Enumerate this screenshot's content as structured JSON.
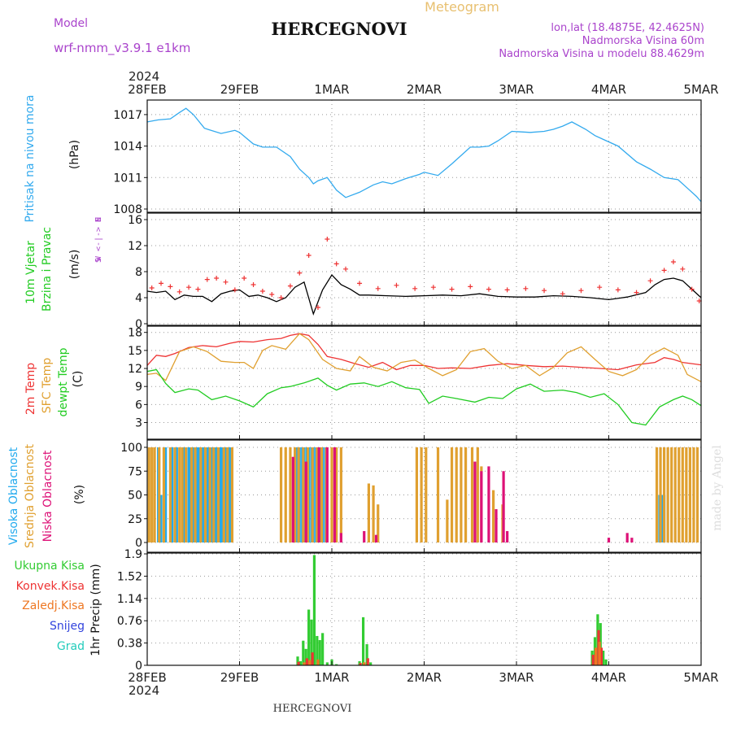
{
  "header": {
    "title": "HERCEGNOVI",
    "subtitle": "Meteogram",
    "model_label": "Model",
    "model_name": "wrf-nmm_v3.9.1  e1km",
    "coords": "lon,lat (18.4875E, 42.4625N)",
    "elevation": "Nadmorska Visina 60m",
    "model_elevation": "Nadmorska Visina u modelu 88.4629m",
    "footer_title": "HERCEGNOVI",
    "watermark": "made by Angel"
  },
  "time_axis": {
    "year": "2024",
    "labels": [
      "28FEB",
      "29FEB",
      "1MAR",
      "2MAR",
      "3MAR",
      "4MAR",
      "5MAR"
    ],
    "range_days": [
      0,
      6
    ]
  },
  "colors": {
    "pressure": "#33aaee",
    "wind_speed": "#000000",
    "wind_gust": "#ee3333",
    "temp_2m": "#ee3333",
    "temp_sfc": "#e0a030",
    "dewpoint": "#22cc22",
    "cloud_high": "#22aaee",
    "cloud_mid": "#e0a030",
    "cloud_low": "#dd1177",
    "precip_total": "#33cc33",
    "precip_conv": "#ee3333",
    "precip_strat": "#ee7722",
    "snow": "#3344dd",
    "hail": "#22ccbb"
  },
  "chart_data": [
    {
      "type": "line",
      "panel": "pressure",
      "ylabel_1": "Pritisak na nivou mora",
      "ylabel_2": "(hPa)",
      "yticks": [
        "1008",
        "1011",
        "1014",
        "1017"
      ],
      "ylim": [
        1008,
        1018
      ],
      "grid": true,
      "series": [
        {
          "key": "pressure",
          "x": [
            0,
            0.12,
            0.25,
            0.35,
            0.42,
            0.5,
            0.62,
            0.8,
            0.95,
            1.0,
            1.15,
            1.25,
            1.4,
            1.55,
            1.65,
            1.75,
            1.8,
            1.85,
            1.95,
            2.05,
            2.15,
            2.3,
            2.45,
            2.55,
            2.65,
            2.8,
            2.95,
            3.0,
            3.15,
            3.3,
            3.5,
            3.6,
            3.7,
            3.8,
            3.95,
            4.15,
            4.3,
            4.4,
            4.5,
            4.6,
            4.75,
            4.85,
            4.95,
            5.1,
            5.3,
            5.45,
            5.6,
            5.75,
            5.85,
            5.95,
            6.0
          ],
          "values": [
            1016.3,
            1016.5,
            1016.6,
            1017.2,
            1017.6,
            1017.0,
            1015.7,
            1015.2,
            1015.5,
            1015.3,
            1014.2,
            1013.9,
            1013.9,
            1013.0,
            1011.8,
            1011.0,
            1010.4,
            1010.7,
            1011.0,
            1009.8,
            1009.1,
            1009.6,
            1010.3,
            1010.6,
            1010.4,
            1010.9,
            1011.3,
            1011.5,
            1011.2,
            1012.3,
            1013.9,
            1013.9,
            1014.0,
            1014.5,
            1015.4,
            1015.3,
            1015.4,
            1015.6,
            1015.9,
            1016.3,
            1015.6,
            1015.0,
            1014.6,
            1014.0,
            1012.5,
            1011.8,
            1011.0,
            1010.8,
            1010.0,
            1009.2,
            1008.7
          ]
        }
      ]
    },
    {
      "type": "line",
      "panel": "wind",
      "ylabel_1": "10m Vjetar",
      "ylabel_2": "Brzina i Pravac",
      "ylabel_3": "(m/s)",
      "compass": "N",
      "compass_row": "W <-|-> E",
      "compass_s": "S",
      "yticks": [
        "0",
        "4",
        "8",
        "12",
        "16"
      ],
      "ylim": [
        0,
        16.5
      ],
      "grid": true,
      "series": [
        {
          "key": "wind_speed",
          "marker": "line",
          "x": [
            0,
            0.1,
            0.2,
            0.3,
            0.4,
            0.5,
            0.6,
            0.7,
            0.8,
            0.9,
            1.0,
            1.1,
            1.2,
            1.3,
            1.4,
            1.5,
            1.6,
            1.7,
            1.8,
            1.9,
            2.0,
            2.1,
            2.2,
            2.3,
            2.4,
            2.6,
            2.8,
            3.0,
            3.2,
            3.4,
            3.6,
            3.8,
            4.0,
            4.2,
            4.4,
            4.6,
            4.8,
            5.0,
            5.2,
            5.4,
            5.5,
            5.6,
            5.7,
            5.8,
            5.9,
            6.0
          ],
          "values": [
            5,
            4.8,
            5,
            3.7,
            4.4,
            4.2,
            4.2,
            3.4,
            4.6,
            5.0,
            5.2,
            4.2,
            4.4,
            4.0,
            3.4,
            4.0,
            5.6,
            6.4,
            1.5,
            5.2,
            7.5,
            6.0,
            5.3,
            4.4,
            4.4,
            4.3,
            4.2,
            4.3,
            4.4,
            4.3,
            4.6,
            4.2,
            4.1,
            4.1,
            4.3,
            4.2,
            4.0,
            3.7,
            4.1,
            4.8,
            6.0,
            6.8,
            7.0,
            6.6,
            5.3,
            4.0
          ]
        },
        {
          "key": "wind_gust",
          "marker": "plus",
          "x": [
            0.05,
            0.15,
            0.25,
            0.35,
            0.45,
            0.55,
            0.65,
            0.75,
            0.85,
            0.95,
            1.05,
            1.15,
            1.25,
            1.35,
            1.45,
            1.55,
            1.65,
            1.75,
            1.85,
            1.95,
            2.05,
            2.15,
            2.3,
            2.5,
            2.7,
            2.9,
            3.1,
            3.3,
            3.5,
            3.7,
            3.9,
            4.1,
            4.3,
            4.5,
            4.7,
            4.9,
            5.1,
            5.3,
            5.45,
            5.6,
            5.7,
            5.8,
            5.9,
            5.98
          ],
          "values": [
            5.5,
            6.2,
            5.7,
            4.9,
            5.6,
            5.3,
            6.8,
            7.0,
            6.4,
            5.2,
            7.0,
            6.0,
            5.0,
            4.5,
            4.0,
            5.8,
            7.8,
            10.5,
            2.5,
            13.0,
            9.2,
            8.4,
            6.2,
            5.4,
            5.9,
            5.4,
            5.6,
            5.3,
            5.7,
            5.3,
            5.2,
            5.4,
            5.1,
            4.6,
            5.1,
            5.6,
            5.2,
            4.8,
            6.6,
            8.2,
            9.5,
            8.4,
            5.3,
            3.5
          ]
        }
      ]
    },
    {
      "type": "line",
      "panel": "temperature",
      "ylabel_1": "2m Temp",
      "ylabel_2": "SFC Temp",
      "ylabel_3": "dewpt Temp",
      "ylabel_4": "(C)",
      "yticks": [
        "3",
        "6",
        "9",
        "12",
        "15",
        "18"
      ],
      "ylim": [
        0.5,
        18.5
      ],
      "grid": true,
      "series": [
        {
          "key": "temp_2m",
          "x": [
            0,
            0.1,
            0.2,
            0.3,
            0.45,
            0.6,
            0.75,
            0.9,
            1.0,
            1.15,
            1.3,
            1.45,
            1.55,
            1.65,
            1.75,
            1.85,
            1.95,
            2.1,
            2.25,
            2.4,
            2.55,
            2.7,
            2.85,
            3.0,
            3.15,
            3.3,
            3.5,
            3.7,
            3.9,
            4.1,
            4.3,
            4.5,
            4.7,
            4.9,
            5.1,
            5.3,
            5.5,
            5.6,
            5.7,
            5.8,
            5.9,
            6.0
          ],
          "values": [
            12.5,
            14.2,
            14.0,
            14.5,
            15.5,
            15.8,
            15.6,
            16.2,
            16.5,
            16.4,
            16.8,
            17.0,
            17.5,
            17.8,
            17.5,
            16.0,
            14.0,
            13.5,
            12.8,
            12.2,
            13.0,
            11.8,
            12.5,
            12.5,
            12.0,
            12.1,
            12.0,
            12.5,
            12.8,
            12.5,
            12.3,
            12.4,
            12.2,
            12.0,
            11.8,
            12.6,
            13.0,
            13.8,
            13.5,
            13.0,
            12.8,
            12.6
          ]
        },
        {
          "key": "temp_sfc",
          "x": [
            0,
            0.1,
            0.2,
            0.35,
            0.5,
            0.65,
            0.8,
            0.95,
            1.05,
            1.15,
            1.25,
            1.35,
            1.5,
            1.65,
            1.75,
            1.9,
            2.05,
            2.2,
            2.3,
            2.45,
            2.6,
            2.75,
            2.9,
            3.05,
            3.2,
            3.35,
            3.5,
            3.65,
            3.8,
            3.95,
            4.1,
            4.25,
            4.4,
            4.55,
            4.7,
            4.85,
            5.0,
            5.15,
            5.3,
            5.45,
            5.6,
            5.75,
            5.85,
            6.0
          ],
          "values": [
            11.0,
            11.2,
            10.0,
            14.8,
            15.6,
            14.8,
            13.2,
            13.0,
            13.0,
            12.0,
            15.0,
            15.8,
            15.2,
            17.8,
            16.8,
            13.5,
            12.0,
            11.6,
            14.0,
            12.2,
            11.6,
            13.0,
            13.4,
            12.0,
            10.8,
            11.8,
            14.8,
            15.3,
            13.2,
            12.0,
            12.5,
            10.8,
            12.2,
            14.6,
            15.6,
            13.5,
            11.5,
            10.8,
            11.8,
            14.2,
            15.4,
            14.2,
            11.0,
            9.8
          ]
        },
        {
          "key": "dewpoint",
          "x": [
            0,
            0.1,
            0.2,
            0.3,
            0.45,
            0.55,
            0.7,
            0.85,
            1.0,
            1.15,
            1.3,
            1.45,
            1.55,
            1.7,
            1.85,
            1.95,
            2.05,
            2.2,
            2.35,
            2.5,
            2.65,
            2.8,
            2.95,
            3.05,
            3.2,
            3.35,
            3.55,
            3.7,
            3.85,
            4.0,
            4.15,
            4.3,
            4.5,
            4.65,
            4.8,
            4.95,
            5.1,
            5.25,
            5.4,
            5.55,
            5.7,
            5.8,
            5.9,
            6.0
          ],
          "values": [
            11.5,
            11.8,
            9.5,
            8.0,
            8.6,
            8.4,
            6.8,
            7.4,
            6.6,
            5.6,
            7.8,
            8.8,
            9.0,
            9.6,
            10.4,
            9.2,
            8.4,
            9.4,
            9.6,
            9.0,
            9.8,
            8.8,
            8.5,
            6.2,
            7.4,
            7.0,
            6.4,
            7.2,
            7.0,
            8.6,
            9.4,
            8.2,
            8.4,
            8.0,
            7.2,
            7.8,
            6.0,
            3.0,
            2.6,
            5.6,
            6.8,
            7.4,
            6.8,
            5.8
          ]
        }
      ]
    },
    {
      "type": "bar",
      "panel": "cloud",
      "ylabel_1": "Visoka Oblacnost",
      "ylabel_2": "Srednja Oblacnost",
      "ylabel_3": "Niska Oblacnost",
      "ylabel_4": "(%)",
      "yticks": [
        "0",
        "25",
        "50",
        "75",
        "100"
      ],
      "ylim": [
        0,
        100
      ],
      "grid": true,
      "series": [
        {
          "key": "cloud_high",
          "x": [
            0.12,
            0.15,
            0.2,
            0.27,
            0.32,
            0.4,
            0.45,
            0.47,
            0.5,
            0.53,
            0.55,
            0.57,
            0.6,
            0.62,
            0.65,
            0.67,
            0.7,
            0.73,
            0.75,
            0.78,
            0.8,
            0.82,
            0.85,
            0.88,
            0.9,
            1.62,
            1.65,
            1.68,
            1.7,
            1.73,
            1.75,
            1.78,
            1.8,
            1.83,
            1.85,
            1.88,
            1.9,
            1.93,
            5.55,
            5.58,
            5.6
          ],
          "values": [
            100,
            50,
            100,
            100,
            100,
            100,
            100,
            100,
            100,
            100,
            100,
            100,
            100,
            100,
            100,
            100,
            100,
            100,
            100,
            100,
            100,
            100,
            100,
            100,
            100,
            100,
            100,
            100,
            100,
            100,
            100,
            100,
            100,
            100,
            100,
            100,
            100,
            100,
            50,
            50,
            50
          ]
        },
        {
          "key": "cloud_mid",
          "x": [
            0.02,
            0.05,
            0.08,
            0.13,
            0.18,
            0.25,
            0.3,
            0.35,
            0.38,
            0.42,
            0.48,
            0.52,
            0.58,
            0.63,
            0.68,
            0.72,
            0.77,
            0.83,
            0.87,
            0.92,
            1.45,
            1.5,
            1.55,
            1.6,
            1.64,
            1.69,
            1.74,
            1.79,
            1.84,
            1.89,
            1.94,
            2.0,
            2.05,
            2.1,
            2.4,
            2.45,
            2.5,
            2.92,
            2.97,
            3.02,
            3.15,
            3.25,
            3.3,
            3.35,
            3.4,
            3.45,
            3.52,
            3.58,
            3.62,
            3.75,
            3.85,
            5.52,
            5.56,
            5.6,
            5.64,
            5.68,
            5.72,
            5.76,
            5.8,
            5.84,
            5.88,
            5.92,
            5.96
          ],
          "values": [
            100,
            100,
            100,
            100,
            100,
            100,
            100,
            100,
            100,
            100,
            100,
            100,
            100,
            100,
            100,
            100,
            100,
            100,
            100,
            100,
            100,
            100,
            100,
            100,
            100,
            100,
            100,
            100,
            100,
            100,
            100,
            100,
            100,
            100,
            62,
            60,
            40,
            100,
            100,
            100,
            100,
            45,
            100,
            100,
            100,
            100,
            100,
            100,
            80,
            55,
            40,
            100,
            100,
            100,
            100,
            100,
            100,
            100,
            100,
            100,
            100,
            100,
            100
          ]
        },
        {
          "key": "cloud_low",
          "x": [
            1.58,
            1.72,
            1.86,
            1.95,
            2.03,
            2.1,
            2.35,
            2.48,
            3.55,
            3.62,
            3.7,
            3.78,
            3.86,
            3.9,
            5.0,
            5.2,
            5.25
          ],
          "values": [
            90,
            85,
            100,
            100,
            100,
            10,
            12,
            8,
            85,
            75,
            80,
            35,
            75,
            12,
            5,
            10,
            5
          ]
        }
      ]
    },
    {
      "type": "bar",
      "panel": "precip",
      "ylabel": "1hr Precip (mm)",
      "legend": [
        "Ukupna Kisa",
        "Konvek.Kisa",
        "Zaledj.Kisa",
        "Snijeg",
        "Grad"
      ],
      "yticks": [
        "0",
        "0.38",
        "0.76",
        "1.14",
        "1.52",
        "1.9"
      ],
      "ylim": [
        0,
        1.9
      ],
      "grid": true,
      "series": [
        {
          "key": "precip_total",
          "x": [
            1.63,
            1.66,
            1.69,
            1.72,
            1.75,
            1.78,
            1.81,
            1.84,
            1.87,
            1.9,
            1.95,
            2.0,
            2.05,
            2.3,
            2.34,
            2.38,
            2.42,
            4.82,
            4.85,
            4.88,
            4.91,
            4.94,
            4.97
          ],
          "values": [
            0.15,
            0.07,
            0.42,
            0.28,
            0.95,
            0.78,
            1.88,
            0.5,
            0.43,
            0.55,
            0.05,
            0.1,
            0.02,
            0.07,
            0.82,
            0.36,
            0.05,
            0.25,
            0.48,
            0.87,
            0.72,
            0.25,
            0.1
          ]
        },
        {
          "key": "precip_conv",
          "x": [
            1.64,
            1.73,
            1.79,
            2.31,
            2.39,
            4.83,
            4.89,
            4.92
          ],
          "values": [
            0.06,
            0.12,
            0.22,
            0.04,
            0.12,
            0.18,
            0.6,
            0.3
          ]
        },
        {
          "key": "precip_strat",
          "x": [
            1.7,
            1.76,
            1.85,
            2.35,
            4.86,
            4.9
          ],
          "values": [
            0.05,
            0.09,
            0.1,
            0.05,
            0.3,
            0.4
          ]
        }
      ]
    }
  ]
}
